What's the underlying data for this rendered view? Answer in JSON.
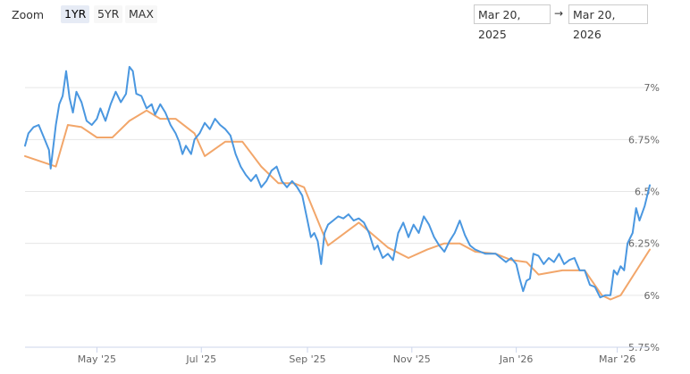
{
  "toolbar": {
    "zoom_label": "Zoom",
    "ranges": [
      "1YR",
      "5YR",
      "MAX"
    ],
    "active_range": "1YR",
    "date_from": "Mar 20, 2025",
    "date_to": "Mar 20, 2026",
    "date_separator": "→"
  },
  "chart_data": {
    "type": "line",
    "title": "",
    "xlabel": "",
    "ylabel": "",
    "x_range": [
      "2025-03-20",
      "2026-03-20"
    ],
    "ylim": [
      5.75,
      7.25
    ],
    "y_ticks": [
      5.75,
      6,
      6.25,
      6.5,
      6.75,
      7
    ],
    "y_tick_labels": [
      "5.75%",
      "6%",
      "6.25%",
      "6.5%",
      "6.75%",
      "7%"
    ],
    "x_ticks": [
      "2025-05-01",
      "2025-07-01",
      "2025-09-01",
      "2025-11-01",
      "2026-01-01",
      "2026-03-01"
    ],
    "x_tick_labels": [
      "May '25",
      "Jul '25",
      "Sep '25",
      "Nov '25",
      "Jan '26",
      "Mar '26"
    ],
    "grid": "horizontal",
    "legend": "none",
    "colors": {
      "daily": "#4a97e0",
      "weekly": "#f2a66a",
      "grid": "#e6e6e6",
      "axis": "#ccd6eb"
    },
    "series": [
      {
        "color": "#4a97e0",
        "points": [
          [
            "2025-03-20",
            6.72
          ],
          [
            "2025-03-22",
            6.78
          ],
          [
            "2025-03-25",
            6.81
          ],
          [
            "2025-03-28",
            6.82
          ],
          [
            "2025-03-31",
            6.76
          ],
          [
            "2025-04-03",
            6.7
          ],
          [
            "2025-04-04",
            6.61
          ],
          [
            "2025-04-07",
            6.82
          ],
          [
            "2025-04-09",
            6.92
          ],
          [
            "2025-04-11",
            6.96
          ],
          [
            "2025-04-13",
            7.08
          ],
          [
            "2025-04-15",
            6.95
          ],
          [
            "2025-04-17",
            6.88
          ],
          [
            "2025-04-19",
            6.98
          ],
          [
            "2025-04-22",
            6.93
          ],
          [
            "2025-04-25",
            6.84
          ],
          [
            "2025-04-28",
            6.82
          ],
          [
            "2025-05-01",
            6.85
          ],
          [
            "2025-05-03",
            6.9
          ],
          [
            "2025-05-06",
            6.84
          ],
          [
            "2025-05-09",
            6.92
          ],
          [
            "2025-05-12",
            6.98
          ],
          [
            "2025-05-15",
            6.93
          ],
          [
            "2025-05-18",
            6.97
          ],
          [
            "2025-05-20",
            7.1
          ],
          [
            "2025-05-22",
            7.08
          ],
          [
            "2025-05-24",
            6.97
          ],
          [
            "2025-05-27",
            6.96
          ],
          [
            "2025-05-30",
            6.9
          ],
          [
            "2025-06-02",
            6.92
          ],
          [
            "2025-06-04",
            6.87
          ],
          [
            "2025-06-07",
            6.92
          ],
          [
            "2025-06-10",
            6.88
          ],
          [
            "2025-06-13",
            6.82
          ],
          [
            "2025-06-16",
            6.78
          ],
          [
            "2025-06-18",
            6.74
          ],
          [
            "2025-06-20",
            6.68
          ],
          [
            "2025-06-22",
            6.72
          ],
          [
            "2025-06-25",
            6.68
          ],
          [
            "2025-06-27",
            6.75
          ],
          [
            "2025-06-30",
            6.78
          ],
          [
            "2025-07-03",
            6.83
          ],
          [
            "2025-07-06",
            6.8
          ],
          [
            "2025-07-09",
            6.85
          ],
          [
            "2025-07-12",
            6.82
          ],
          [
            "2025-07-15",
            6.8
          ],
          [
            "2025-07-18",
            6.77
          ],
          [
            "2025-07-21",
            6.68
          ],
          [
            "2025-07-24",
            6.62
          ],
          [
            "2025-07-27",
            6.58
          ],
          [
            "2025-07-30",
            6.55
          ],
          [
            "2025-08-02",
            6.58
          ],
          [
            "2025-08-05",
            6.52
          ],
          [
            "2025-08-08",
            6.55
          ],
          [
            "2025-08-11",
            6.6
          ],
          [
            "2025-08-14",
            6.62
          ],
          [
            "2025-08-17",
            6.55
          ],
          [
            "2025-08-20",
            6.52
          ],
          [
            "2025-08-23",
            6.55
          ],
          [
            "2025-08-26",
            6.52
          ],
          [
            "2025-08-29",
            6.48
          ],
          [
            "2025-09-01",
            6.36
          ],
          [
            "2025-09-03",
            6.28
          ],
          [
            "2025-09-05",
            6.3
          ],
          [
            "2025-09-07",
            6.26
          ],
          [
            "2025-09-09",
            6.15
          ],
          [
            "2025-09-11",
            6.3
          ],
          [
            "2025-09-13",
            6.34
          ],
          [
            "2025-09-16",
            6.36
          ],
          [
            "2025-09-19",
            6.38
          ],
          [
            "2025-09-22",
            6.37
          ],
          [
            "2025-09-25",
            6.39
          ],
          [
            "2025-09-28",
            6.36
          ],
          [
            "2025-10-01",
            6.37
          ],
          [
            "2025-10-04",
            6.35
          ],
          [
            "2025-10-07",
            6.3
          ],
          [
            "2025-10-10",
            6.22
          ],
          [
            "2025-10-12",
            6.24
          ],
          [
            "2025-10-15",
            6.18
          ],
          [
            "2025-10-18",
            6.2
          ],
          [
            "2025-10-21",
            6.17
          ],
          [
            "2025-10-24",
            6.3
          ],
          [
            "2025-10-27",
            6.35
          ],
          [
            "2025-10-30",
            6.28
          ],
          [
            "2025-11-02",
            6.34
          ],
          [
            "2025-11-05",
            6.3
          ],
          [
            "2025-11-08",
            6.38
          ],
          [
            "2025-11-11",
            6.34
          ],
          [
            "2025-11-14",
            6.28
          ],
          [
            "2025-11-17",
            6.24
          ],
          [
            "2025-11-20",
            6.21
          ],
          [
            "2025-11-23",
            6.26
          ],
          [
            "2025-11-26",
            6.3
          ],
          [
            "2025-11-29",
            6.36
          ],
          [
            "2025-12-02",
            6.29
          ],
          [
            "2025-12-05",
            6.24
          ],
          [
            "2025-12-08",
            6.22
          ],
          [
            "2025-12-11",
            6.21
          ],
          [
            "2025-12-14",
            6.2
          ],
          [
            "2025-12-17",
            6.2
          ],
          [
            "2025-12-20",
            6.2
          ],
          [
            "2025-12-23",
            6.18
          ],
          [
            "2025-12-26",
            6.16
          ],
          [
            "2025-12-29",
            6.18
          ],
          [
            "2026-01-01",
            6.15
          ],
          [
            "2026-01-03",
            6.08
          ],
          [
            "2026-01-05",
            6.02
          ],
          [
            "2026-01-07",
            6.07
          ],
          [
            "2026-01-09",
            6.08
          ],
          [
            "2026-01-11",
            6.2
          ],
          [
            "2026-01-14",
            6.19
          ],
          [
            "2026-01-17",
            6.15
          ],
          [
            "2026-01-20",
            6.18
          ],
          [
            "2026-01-23",
            6.16
          ],
          [
            "2026-01-26",
            6.2
          ],
          [
            "2026-01-29",
            6.15
          ],
          [
            "2026-02-01",
            6.17
          ],
          [
            "2026-02-04",
            6.18
          ],
          [
            "2026-02-07",
            6.12
          ],
          [
            "2026-02-10",
            6.12
          ],
          [
            "2026-02-13",
            6.05
          ],
          [
            "2026-02-16",
            6.04
          ],
          [
            "2026-02-19",
            5.99
          ],
          [
            "2026-02-22",
            6.0
          ],
          [
            "2026-02-25",
            6.0
          ],
          [
            "2026-02-27",
            6.12
          ],
          [
            "2026-03-01",
            6.1
          ],
          [
            "2026-03-03",
            6.14
          ],
          [
            "2026-03-05",
            6.12
          ],
          [
            "2026-03-07",
            6.25
          ],
          [
            "2026-03-10",
            6.3
          ],
          [
            "2026-03-12",
            6.42
          ],
          [
            "2026-03-14",
            6.36
          ],
          [
            "2026-03-17",
            6.43
          ],
          [
            "2026-03-20",
            6.53
          ]
        ]
      },
      {
        "color": "#f2a66a",
        "points": [
          [
            "2025-03-20",
            6.67
          ],
          [
            "2025-04-07",
            6.62
          ],
          [
            "2025-04-14",
            6.82
          ],
          [
            "2025-04-22",
            6.81
          ],
          [
            "2025-05-01",
            6.76
          ],
          [
            "2025-05-10",
            6.76
          ],
          [
            "2025-05-20",
            6.84
          ],
          [
            "2025-05-30",
            6.89
          ],
          [
            "2025-06-07",
            6.85
          ],
          [
            "2025-06-16",
            6.85
          ],
          [
            "2025-06-27",
            6.78
          ],
          [
            "2025-07-03",
            6.67
          ],
          [
            "2025-07-15",
            6.74
          ],
          [
            "2025-07-25",
            6.74
          ],
          [
            "2025-08-05",
            6.62
          ],
          [
            "2025-08-15",
            6.54
          ],
          [
            "2025-08-24",
            6.54
          ],
          [
            "2025-08-30",
            6.52
          ],
          [
            "2025-09-13",
            6.24
          ],
          [
            "2025-10-01",
            6.35
          ],
          [
            "2025-10-18",
            6.23
          ],
          [
            "2025-10-30",
            6.18
          ],
          [
            "2025-11-10",
            6.22
          ],
          [
            "2025-11-20",
            6.25
          ],
          [
            "2025-11-29",
            6.25
          ],
          [
            "2025-12-08",
            6.21
          ],
          [
            "2025-12-20",
            6.2
          ],
          [
            "2025-12-29",
            6.17
          ],
          [
            "2026-01-07",
            6.16
          ],
          [
            "2026-01-14",
            6.1
          ],
          [
            "2026-01-28",
            6.12
          ],
          [
            "2026-02-10",
            6.12
          ],
          [
            "2026-02-20",
            6.0
          ],
          [
            "2026-02-25",
            5.98
          ],
          [
            "2026-03-03",
            6.0
          ],
          [
            "2026-03-20",
            6.22
          ]
        ]
      }
    ]
  }
}
